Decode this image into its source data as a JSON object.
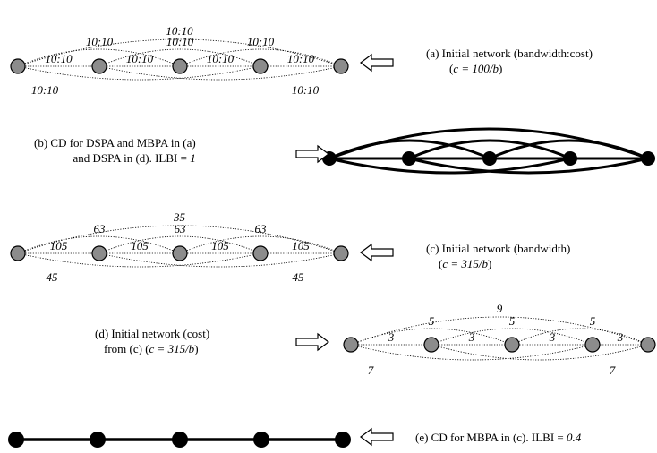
{
  "panels": {
    "a": {
      "caption_line1": "(a) Initial network (bandwidth:cost)",
      "caption_line2_pre": "(",
      "caption_line2_formula": "c = 100/b",
      "caption_line2_post": ")",
      "labels": {
        "adjacent": [
          "10:10",
          "10:10",
          "10:10",
          "10:10"
        ],
        "skip_one_top": [
          "10:10",
          "10:10",
          "10:10"
        ],
        "span_all_top": "10:10",
        "skip_two_bottom_left": "10:10",
        "skip_two_bottom_right": "10:10"
      }
    },
    "b": {
      "caption_line1": "(b) CD for DSPA and MBPA in (a)",
      "caption_line2_pre": "and DSPA in (d).  ILBI = ",
      "caption_line2_value": "1"
    },
    "c": {
      "caption_line1": "(c) Initial network (bandwidth)",
      "caption_line2_pre": "(",
      "caption_line2_formula": "c = 315/b",
      "caption_line2_post": ")",
      "labels": {
        "adjacent": [
          "105",
          "105",
          "105",
          "105"
        ],
        "skip_one_top": [
          "63",
          "63",
          "63"
        ],
        "span_all_top": "35",
        "skip_two_bottom_left": "45",
        "skip_two_bottom_right": "45"
      }
    },
    "d": {
      "caption_line1": "(d) Initial network (cost)",
      "caption_line2_pre": "from (c) (",
      "caption_line2_formula": "c = 315/b",
      "caption_line2_post": ")",
      "labels": {
        "adjacent": [
          "3",
          "3",
          "3",
          "3"
        ],
        "skip_one_top": [
          "5",
          "5",
          "5"
        ],
        "span_all_top": "9",
        "skip_two_bottom_left": "7",
        "skip_two_bottom_right": "7"
      }
    },
    "e": {
      "caption_pre": "(e) CD for MBPA in (c).  ILBI = ",
      "caption_value": "0.4"
    }
  },
  "colors": {
    "node_gray": "#8c8c8c",
    "node_black": "#000000",
    "edge": "#000000"
  },
  "icons": [
    "arrow-left-icon",
    "arrow-right-icon"
  ]
}
